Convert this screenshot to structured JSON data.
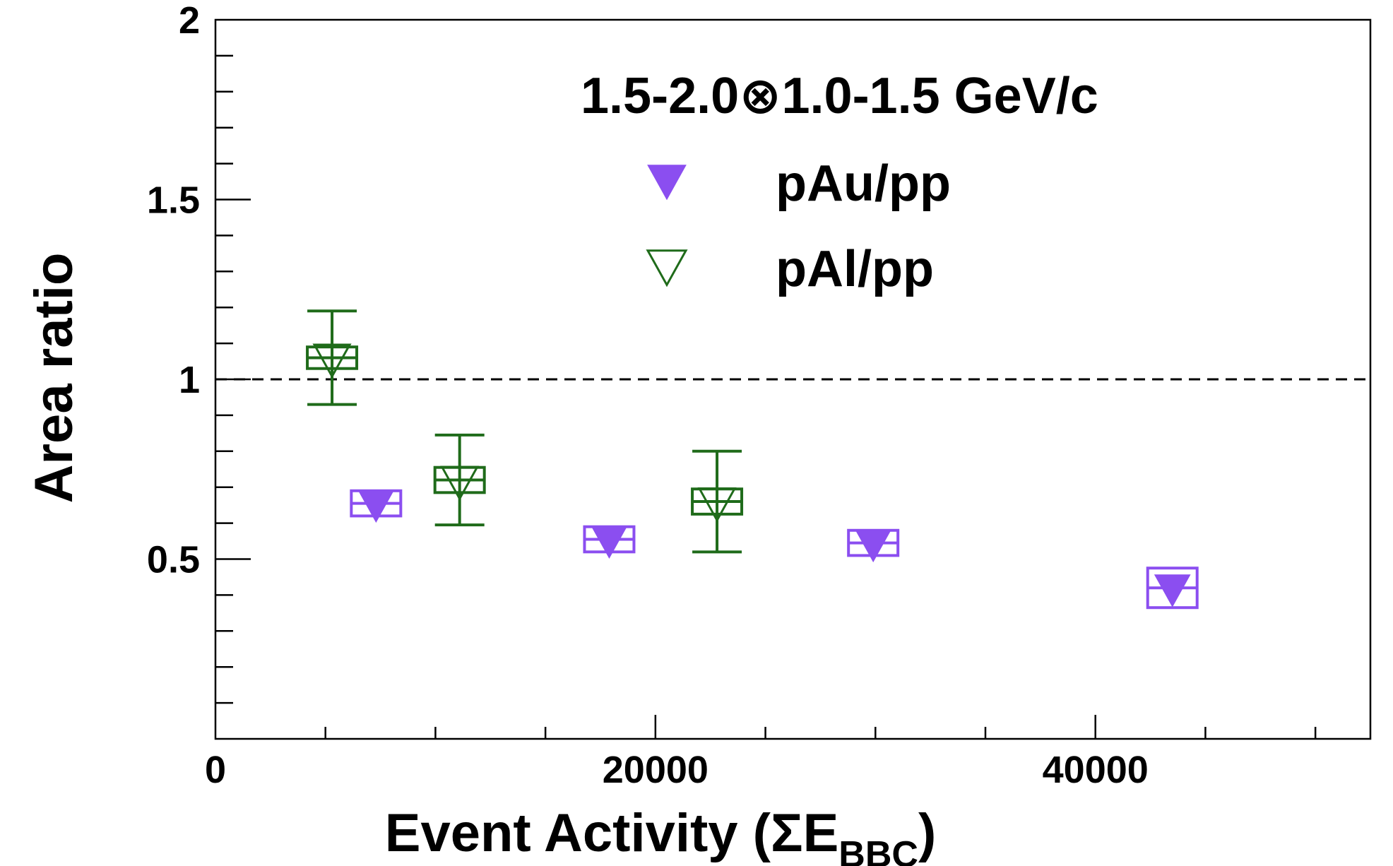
{
  "chart_data": {
    "type": "scatter",
    "title": "1.5-2.0⊗1.0-1.5 GeV/c",
    "xlabel_main": "Event Activity (ΣE",
    "xlabel_sub": "BBC",
    "xlabel_close": ")",
    "ylabel": "Area ratio",
    "xlim": [
      0,
      52500
    ],
    "ylim": [
      0,
      2
    ],
    "x_ticks": [
      "0",
      "20000",
      "40000"
    ],
    "y_ticks": [
      "0.5",
      "1",
      "1.5",
      "2"
    ],
    "reference_line": 1,
    "grid": false,
    "legend_position": "top-right",
    "colors": {
      "pAu": "#8b4ef0",
      "pAl": "#1f6b1a",
      "axis": "#000000"
    },
    "series": [
      {
        "name": "pAu/pp",
        "marker": "filled-triangle-down",
        "points": [
          {
            "x": 7300,
            "y": 0.655,
            "stat": 0.0,
            "sys": 0.035
          },
          {
            "x": 17900,
            "y": 0.555,
            "stat": 0.0,
            "sys": 0.035
          },
          {
            "x": 29900,
            "y": 0.545,
            "stat": 0.0,
            "sys": 0.035
          },
          {
            "x": 43500,
            "y": 0.42,
            "stat": 0.0,
            "sys": 0.055
          }
        ]
      },
      {
        "name": "pAl/pp",
        "marker": "open-triangle-down",
        "points": [
          {
            "x": 5300,
            "y": 1.06,
            "stat": 0.13,
            "sys": 0.03
          },
          {
            "x": 11100,
            "y": 0.72,
            "stat": 0.125,
            "sys": 0.035
          },
          {
            "x": 22800,
            "y": 0.66,
            "stat": 0.14,
            "sys": 0.035
          }
        ]
      }
    ]
  }
}
